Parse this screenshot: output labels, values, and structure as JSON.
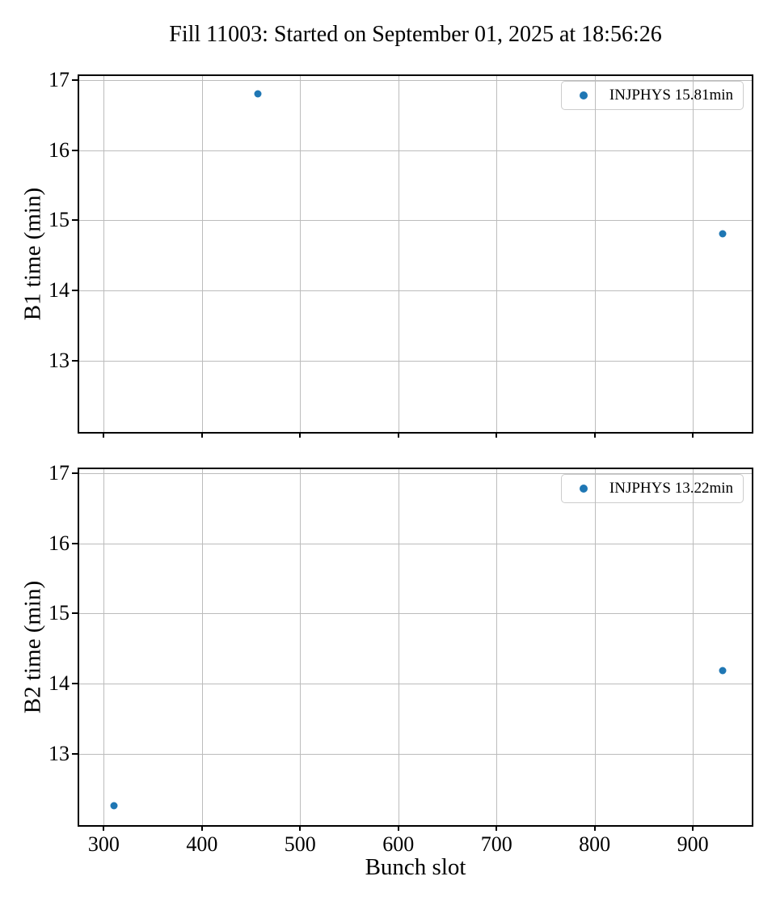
{
  "title": "Fill 11003: Started on September 01, 2025 at 18:56:26",
  "colors": {
    "marker": "#1f77b4",
    "grid": "#bcbcbc",
    "spine": "#000000",
    "legend_border": "#cccccc",
    "background": "#ffffff"
  },
  "chart_data": {
    "type": "scatter",
    "title": "Fill 11003: Started on September 01, 2025 at 18:56:26",
    "xlabel": "Bunch slot",
    "xlim": [
      275,
      960
    ],
    "ylim": [
      11.98,
      17.06
    ],
    "xticks": [
      300,
      400,
      500,
      600,
      700,
      800,
      900
    ],
    "yticks": [
      13,
      14,
      15,
      16,
      17
    ],
    "grid": true,
    "legend_position": "upper right",
    "subplots": [
      {
        "name": "B1",
        "ylabel": "B1 time (min)",
        "legend": "INJPHYS 15.81min",
        "mean_min": 15.81,
        "points": [
          {
            "x": 457,
            "y": 16.81
          },
          {
            "x": 930,
            "y": 14.81
          }
        ]
      },
      {
        "name": "B2",
        "ylabel": "B2 time (min)",
        "legend": "INJPHYS 13.22min",
        "mean_min": 13.22,
        "points": [
          {
            "x": 310,
            "y": 12.26
          },
          {
            "x": 930,
            "y": 14.18
          }
        ]
      }
    ]
  }
}
